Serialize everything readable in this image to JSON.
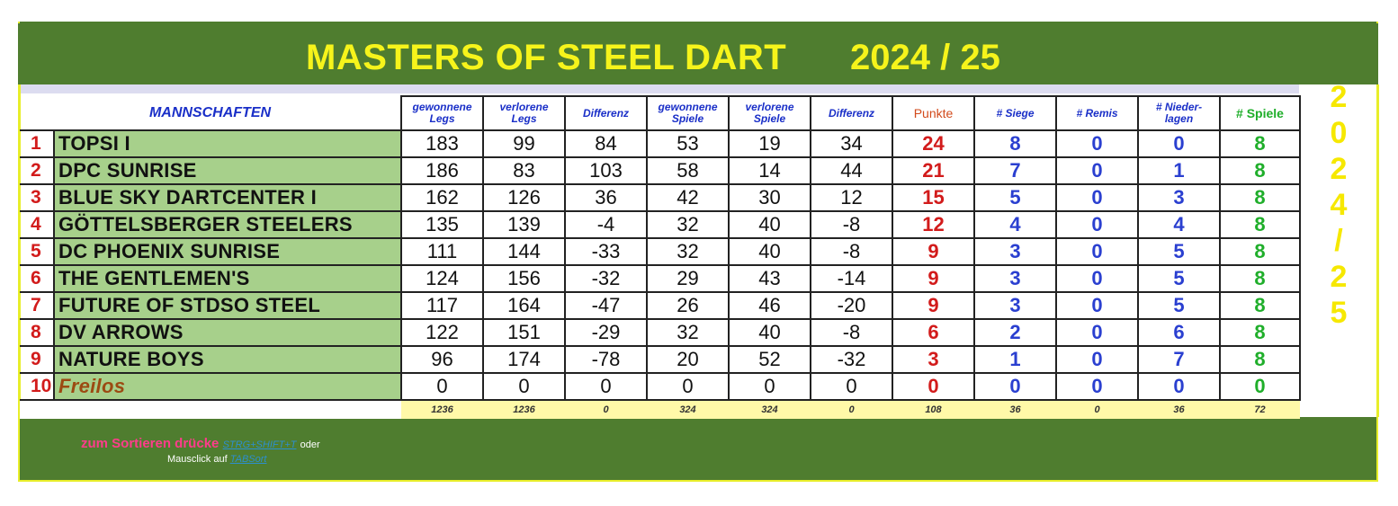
{
  "title": {
    "left": "MASTERS OF STEEL DART",
    "right": "2024 / 25"
  },
  "vertical_year": [
    "2",
    "0",
    "2",
    "4",
    "/",
    "2",
    "5"
  ],
  "headers": {
    "team": "MANNSCHAFTEN",
    "legs_won": [
      "gewonnene",
      "Legs"
    ],
    "legs_lost": [
      "verlorene",
      "Legs"
    ],
    "legs_diff": "Differenz",
    "games_won": [
      "gewonnene",
      "Spiele"
    ],
    "games_lost": [
      "verlorene",
      "Spiele"
    ],
    "games_diff": "Differenz",
    "points": "Punkte",
    "wins": "# Siege",
    "draws": "# Remis",
    "losses": [
      "# Nieder-",
      "lagen"
    ],
    "games": "# Spiele"
  },
  "rows": [
    {
      "rank": "1",
      "team": "TOPSI I",
      "lw": "183",
      "ll": "99",
      "ld": "84",
      "gw": "53",
      "gl": "19",
      "gd": "34",
      "pts": "24",
      "w": "8",
      "d": "0",
      "l": "0",
      "g": "8"
    },
    {
      "rank": "2",
      "team": "DPC SUNRISE",
      "lw": "186",
      "ll": "83",
      "ld": "103",
      "gw": "58",
      "gl": "14",
      "gd": "44",
      "pts": "21",
      "w": "7",
      "d": "0",
      "l": "1",
      "g": "8"
    },
    {
      "rank": "3",
      "team": "BLUE SKY DARTCENTER I",
      "lw": "162",
      "ll": "126",
      "ld": "36",
      "gw": "42",
      "gl": "30",
      "gd": "12",
      "pts": "15",
      "w": "5",
      "d": "0",
      "l": "3",
      "g": "8"
    },
    {
      "rank": "4",
      "team": "GÖTTELSBERGER STEELERS",
      "lw": "135",
      "ll": "139",
      "ld": "-4",
      "gw": "32",
      "gl": "40",
      "gd": "-8",
      "pts": "12",
      "w": "4",
      "d": "0",
      "l": "4",
      "g": "8"
    },
    {
      "rank": "5",
      "team": "DC PHOENIX SUNRISE",
      "lw": "111",
      "ll": "144",
      "ld": "-33",
      "gw": "32",
      "gl": "40",
      "gd": "-8",
      "pts": "9",
      "w": "3",
      "d": "0",
      "l": "5",
      "g": "8"
    },
    {
      "rank": "6",
      "team": "THE GENTLEMEN'S",
      "lw": "124",
      "ll": "156",
      "ld": "-32",
      "gw": "29",
      "gl": "43",
      "gd": "-14",
      "pts": "9",
      "w": "3",
      "d": "0",
      "l": "5",
      "g": "8"
    },
    {
      "rank": "7",
      "team": "FUTURE OF STDSO STEEL",
      "lw": "117",
      "ll": "164",
      "ld": "-47",
      "gw": "26",
      "gl": "46",
      "gd": "-20",
      "pts": "9",
      "w": "3",
      "d": "0",
      "l": "5",
      "g": "8"
    },
    {
      "rank": "8",
      "team": "DV ARROWS",
      "lw": "122",
      "ll": "151",
      "ld": "-29",
      "gw": "32",
      "gl": "40",
      "gd": "-8",
      "pts": "6",
      "w": "2",
      "d": "0",
      "l": "6",
      "g": "8"
    },
    {
      "rank": "9",
      "team": "NATURE BOYS",
      "lw": "96",
      "ll": "174",
      "ld": "-78",
      "gw": "20",
      "gl": "52",
      "gd": "-32",
      "pts": "3",
      "w": "1",
      "d": "0",
      "l": "7",
      "g": "8"
    },
    {
      "rank": "10",
      "team": "Freilos",
      "lw": "0",
      "ll": "0",
      "ld": "0",
      "gw": "0",
      "gl": "0",
      "gd": "0",
      "pts": "0",
      "w": "0",
      "d": "0",
      "l": "0",
      "g": "0"
    }
  ],
  "totals": {
    "lw": "1236",
    "ll": "1236",
    "ld": "0",
    "gw": "324",
    "gl": "324",
    "gd": "0",
    "pts": "108",
    "w": "36",
    "d": "0",
    "l": "36",
    "g": "72"
  },
  "footer": {
    "sort_text": "zum Sortieren drücke",
    "shortcut": "STRG+SHIFT+T",
    "or": "oder",
    "click_text": "Mausclick auf",
    "tab_link": "TABSort"
  },
  "colors": {
    "green_bg": "#4f7d2f",
    "yellow": "#f6f41b",
    "team_bg": "#a7d08b",
    "totals_bg": "#fff9a8"
  }
}
